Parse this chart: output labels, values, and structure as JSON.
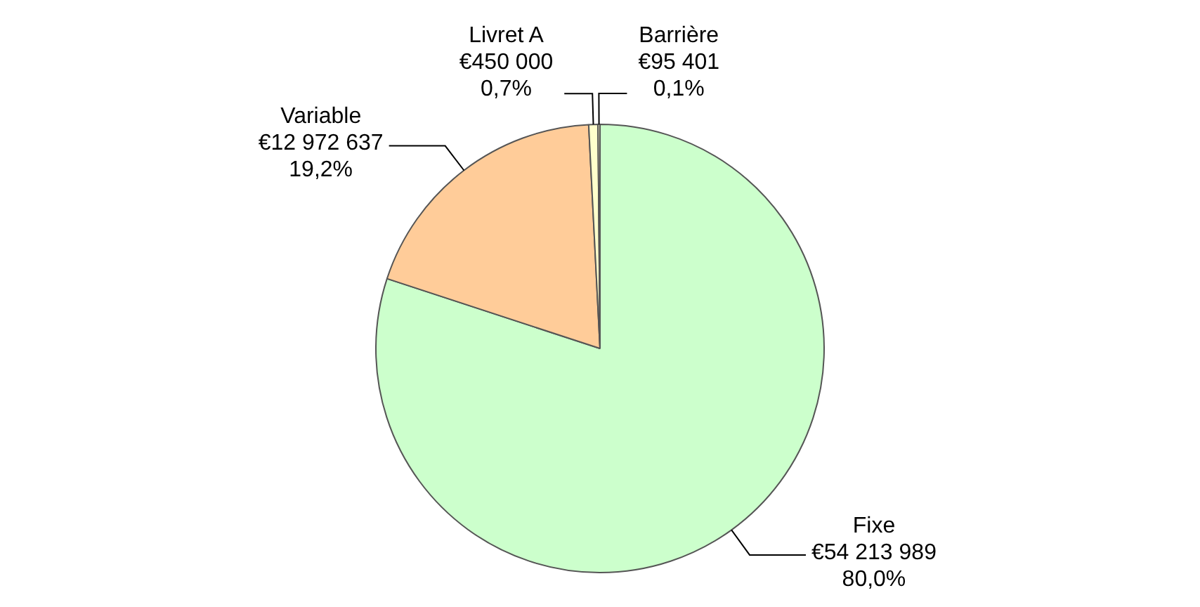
{
  "chart_data": {
    "type": "pie",
    "categories": [
      "Fixe",
      "Variable",
      "Livret A",
      "Barrière"
    ],
    "values": [
      54213989,
      12972637,
      450000,
      95401
    ],
    "colors": [
      "#ccffcc",
      "#ffcc99",
      "#ffffcc",
      "#ffffcc"
    ],
    "value_labels": [
      "€54 213 989\n80,0%",
      "€12 972 637\n19,2%",
      "€450 000\n0,7%",
      "€95 401\n0,1%"
    ],
    "legend": false
  }
}
